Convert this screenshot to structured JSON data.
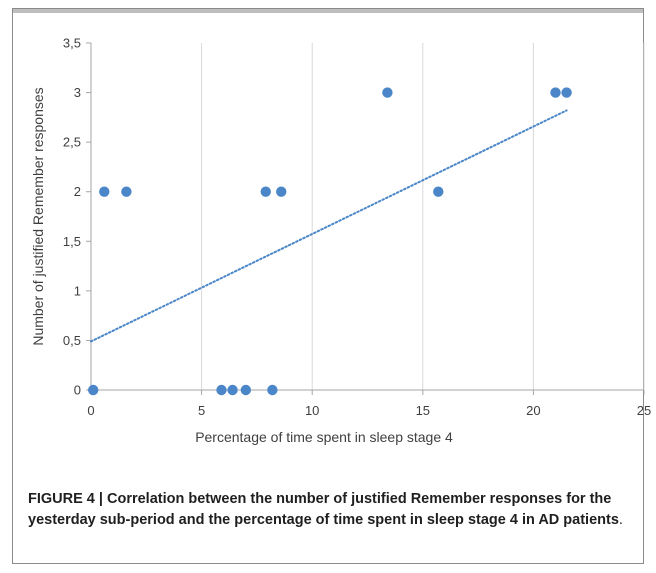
{
  "chart_data": {
    "type": "scatter",
    "title": "",
    "xlabel": "Percentage of time spent in sleep stage 4",
    "ylabel": "Number of justified Remember responses",
    "xlim": [
      0,
      25
    ],
    "ylim": [
      0,
      3.5
    ],
    "x_ticks": [
      0,
      5,
      10,
      15,
      20,
      25
    ],
    "y_ticks": [
      0,
      0.5,
      1,
      1.5,
      2,
      2.5,
      3,
      3.5
    ],
    "x_tick_labels": [
      "0",
      "5",
      "10",
      "15",
      "20",
      "25"
    ],
    "y_tick_labels": [
      "0",
      "0,5",
      "1",
      "1,5",
      "2",
      "2,5",
      "3",
      "3,5"
    ],
    "grid": "vertical",
    "legend": "none",
    "marker_color": "#4a86c8",
    "trendline": {
      "style": "dotted",
      "color": "#4a86c8",
      "x": [
        0,
        21.5
      ],
      "y": [
        0.49,
        2.82
      ]
    },
    "points": [
      {
        "x": 0.1,
        "y": 0
      },
      {
        "x": 0.6,
        "y": 2
      },
      {
        "x": 1.6,
        "y": 2
      },
      {
        "x": 5.9,
        "y": 0
      },
      {
        "x": 6.4,
        "y": 0
      },
      {
        "x": 7.0,
        "y": 0
      },
      {
        "x": 7.9,
        "y": 2
      },
      {
        "x": 8.2,
        "y": 0
      },
      {
        "x": 8.6,
        "y": 2
      },
      {
        "x": 13.4,
        "y": 3
      },
      {
        "x": 15.7,
        "y": 2
      },
      {
        "x": 21.0,
        "y": 3
      },
      {
        "x": 21.5,
        "y": 3
      }
    ]
  },
  "caption": {
    "bold_text": "FIGURE 4 | Correlation between the number of justified Remember responses for the yesterday sub-period and the percentage of time spent in sleep stage 4 in AD patients",
    "tail_text": "."
  }
}
